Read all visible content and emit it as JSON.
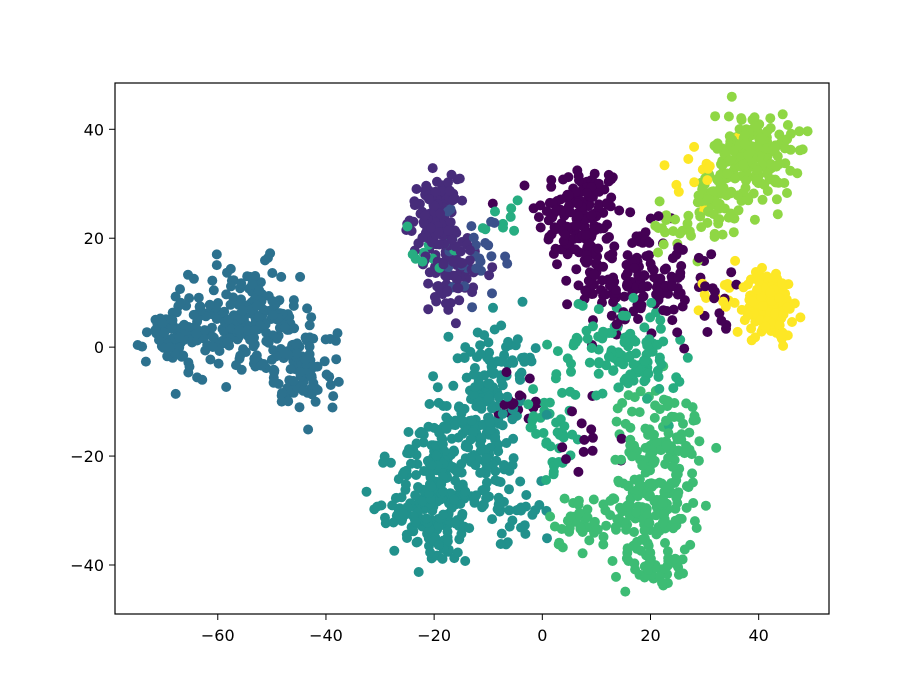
{
  "chart_data": {
    "type": "scatter",
    "title": "",
    "xlabel": "",
    "ylabel": "",
    "xlim": [
      -79,
      53
    ],
    "ylim": [
      -49,
      48.5
    ],
    "xticks": [
      -60,
      -40,
      -20,
      0,
      20,
      40
    ],
    "yticks": [
      -40,
      -20,
      0,
      20,
      40
    ],
    "x_tick_labels": [
      "−60",
      "−40",
      "−20",
      "0",
      "20",
      "40"
    ],
    "y_tick_labels": [
      "−40",
      "−20",
      "0",
      "20",
      "40"
    ],
    "grid": false,
    "legend": "none",
    "colormap": "viridis",
    "series": [
      {
        "color": "#440154",
        "clusters": [
          {
            "cx": 7,
            "cy": 24,
            "sx": 4,
            "sy": 5,
            "n": 150
          },
          {
            "cx": 17,
            "cy": 12,
            "sx": 5,
            "sy": 5,
            "n": 140
          },
          {
            "cx": 30,
            "cy": 9,
            "sx": 5,
            "sy": 4,
            "n": 25
          },
          {
            "cx": -4,
            "cy": -10,
            "sx": 3,
            "sy": 3,
            "n": 15
          },
          {
            "cx": 10,
            "cy": -17,
            "sx": 3,
            "sy": 3,
            "n": 12
          }
        ]
      },
      {
        "color": "#472c7a",
        "clusters": [
          {
            "cx": -20,
            "cy": 24,
            "sx": 2.2,
            "sy": 3.5,
            "n": 110
          },
          {
            "cx": -16,
            "cy": 14,
            "sx": 3.5,
            "sy": 3.5,
            "n": 60
          },
          {
            "cx": -18,
            "cy": 9,
            "sx": 1.5,
            "sy": 2,
            "n": 8
          }
        ]
      },
      {
        "color": "#3b518b",
        "clusters": [
          {
            "cx": -12,
            "cy": 20,
            "sx": 3,
            "sy": 3,
            "n": 20
          },
          {
            "cx": -14,
            "cy": 12,
            "sx": 2.5,
            "sy": 2.5,
            "n": 10
          }
        ]
      },
      {
        "color": "#2c718e",
        "clusters": [
          {
            "cx": -66,
            "cy": 3,
            "sx": 3.5,
            "sy": 3,
            "n": 90
          },
          {
            "cx": -55,
            "cy": 5,
            "sx": 5,
            "sy": 5,
            "n": 150
          },
          {
            "cx": -47,
            "cy": -2,
            "sx": 4,
            "sy": 5,
            "n": 80
          },
          {
            "cx": -42,
            "cy": -6,
            "sx": 2.5,
            "sy": 2.5,
            "n": 25
          }
        ]
      },
      {
        "color": "#21918c",
        "clusters": [
          {
            "cx": -20,
            "cy": -28,
            "sx": 4,
            "sy": 6,
            "n": 200
          },
          {
            "cx": -12,
            "cy": -15,
            "sx": 4,
            "sy": 6,
            "n": 160
          },
          {
            "cx": -8,
            "cy": -2,
            "sx": 4,
            "sy": 4,
            "n": 60
          },
          {
            "cx": -6,
            "cy": -30,
            "sx": 3,
            "sy": 4,
            "n": 40
          },
          {
            "cx": -26,
            "cy": -30,
            "sx": 1.5,
            "sy": 2,
            "n": 10
          }
        ]
      },
      {
        "color": "#27ad81",
        "clusters": [
          {
            "cx": 2,
            "cy": -15,
            "sx": 3,
            "sy": 4,
            "n": 40
          },
          {
            "cx": 13,
            "cy": 0,
            "sx": 5,
            "sy": 5,
            "n": 80
          },
          {
            "cx": 20,
            "cy": -3,
            "sx": 3,
            "sy": 3,
            "n": 40
          },
          {
            "cx": -22,
            "cy": 18,
            "sx": 2,
            "sy": 3,
            "n": 10
          },
          {
            "cx": -8,
            "cy": 23,
            "sx": 2,
            "sy": 3,
            "n": 10
          }
        ]
      },
      {
        "color": "#3dbc74",
        "clusters": [
          {
            "cx": 20,
            "cy": -29,
            "sx": 4,
            "sy": 6,
            "n": 180
          },
          {
            "cx": 22,
            "cy": -15,
            "sx": 4,
            "sy": 4,
            "n": 70
          },
          {
            "cx": 7,
            "cy": -32,
            "sx": 3,
            "sy": 2.5,
            "n": 40
          },
          {
            "cx": 22,
            "cy": -41,
            "sx": 2.5,
            "sy": 2,
            "n": 25
          }
        ]
      },
      {
        "color": "#8fd744",
        "clusters": [
          {
            "cx": 39,
            "cy": 35,
            "sx": 3.5,
            "sy": 4,
            "n": 200
          },
          {
            "cx": 31,
            "cy": 25,
            "sx": 3.5,
            "sy": 3.5,
            "n": 50
          },
          {
            "cx": 23,
            "cy": 22,
            "sx": 3,
            "sy": 2,
            "n": 15
          }
        ]
      },
      {
        "color": "#fde725",
        "clusters": [
          {
            "cx": 42,
            "cy": 8,
            "sx": 2.2,
            "sy": 3,
            "n": 160
          },
          {
            "cx": 33,
            "cy": 10,
            "sx": 2,
            "sy": 2,
            "n": 15
          },
          {
            "cx": 29,
            "cy": 32,
            "sx": 2,
            "sy": 3,
            "n": 15
          }
        ]
      }
    ]
  }
}
